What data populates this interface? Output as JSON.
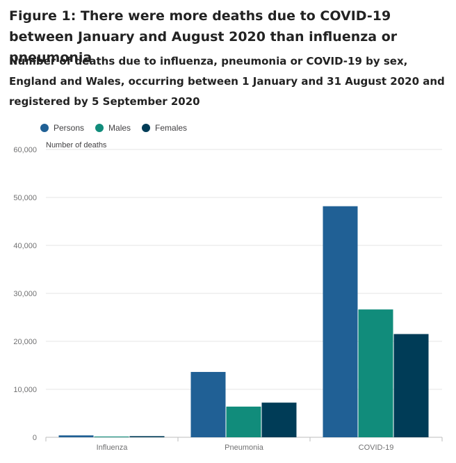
{
  "title": "Figure 1: There were more deaths due to COVID-19 between January and August 2020 than influenza or pneumonia",
  "subtitle": "Number of deaths due to influenza, pneumonia or COVID-19 by sex, England and Wales, occurring between 1 January and 31 August 2020 and registered by 5 September 2020",
  "chart_data": {
    "type": "bar",
    "ylabel": "Number of deaths",
    "ylim": [
      0,
      60000
    ],
    "yticks": [
      0,
      10000,
      20000,
      30000,
      40000,
      50000,
      60000
    ],
    "ytick_labels": [
      "0",
      "10,000",
      "20,000",
      "30,000",
      "40,000",
      "50,000",
      "60,000"
    ],
    "categories": [
      "Influenza",
      "Pneumonia",
      "COVID-19"
    ],
    "series": [
      {
        "name": "Persons",
        "color": "#206095",
        "values": [
          394,
          13619,
          48168
        ]
      },
      {
        "name": "Males",
        "color": "#118c7b",
        "values": [
          160,
          6395,
          26648
        ]
      },
      {
        "name": "Females",
        "color": "#003c57",
        "values": [
          234,
          7224,
          21520
        ]
      }
    ],
    "legend": "top-left",
    "grid": true
  }
}
